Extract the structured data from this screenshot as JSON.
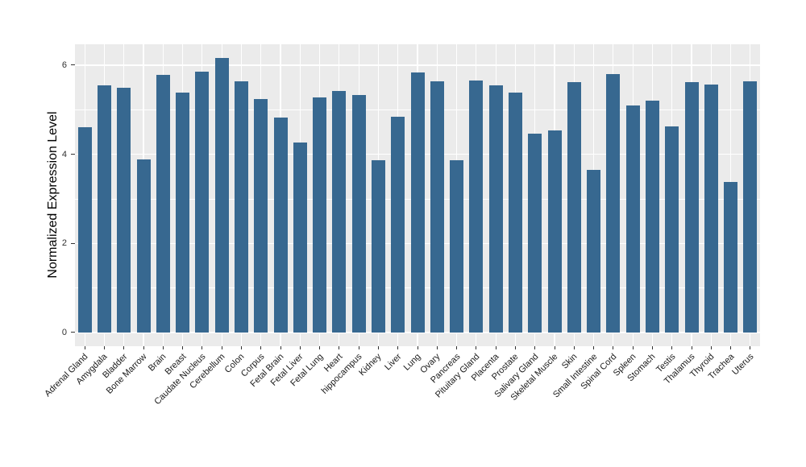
{
  "chart_data": {
    "type": "bar",
    "title": "",
    "xlabel": "",
    "ylabel": "Normalized Expression Level",
    "categories": [
      "Adrenal Gland",
      "Amygdala",
      "Bladder",
      "Bone Marrow",
      "Brain",
      "Breast",
      "Caudate Nucleus",
      "Cerebellum",
      "Colon",
      "Corpus",
      "Fetal Brain",
      "Fetal Liver",
      "Fetal Lung",
      "Heart",
      "hippocampus",
      "Kidney",
      "Liver",
      "Lung",
      "Ovary",
      "Pancreas",
      "Pituitary Gland",
      "Placenta",
      "Prostate",
      "Salivary Gland",
      "Skeletal Muscle",
      "Skin",
      "Small Intestine",
      "Spinal Cord",
      "Spleen",
      "Stomach",
      "Testis",
      "Thalamus",
      "Thyroid",
      "Trachea",
      "Uterus"
    ],
    "values": [
      4.6,
      5.55,
      5.5,
      3.88,
      5.79,
      5.38,
      5.86,
      6.16,
      5.63,
      5.24,
      4.82,
      4.27,
      5.28,
      5.42,
      5.33,
      3.86,
      4.84,
      5.84,
      5.64,
      3.86,
      5.66,
      5.54,
      5.38,
      4.47,
      4.53,
      5.62,
      3.65,
      5.81,
      5.1,
      5.2,
      4.62,
      5.62,
      5.56,
      3.38,
      5.63
    ],
    "ylim": [
      -0.31,
      6.47
    ],
    "yticks": [
      0,
      2,
      4,
      6
    ],
    "yticks_minor": [
      1,
      3,
      5
    ],
    "grid": "on",
    "legend": "none",
    "colors": {
      "bar_fill": "#376890",
      "panel_background": "#EBEBEB",
      "gridline": "#FFFFFF",
      "axis_text": "#303030",
      "axis_title": "#000000"
    }
  }
}
